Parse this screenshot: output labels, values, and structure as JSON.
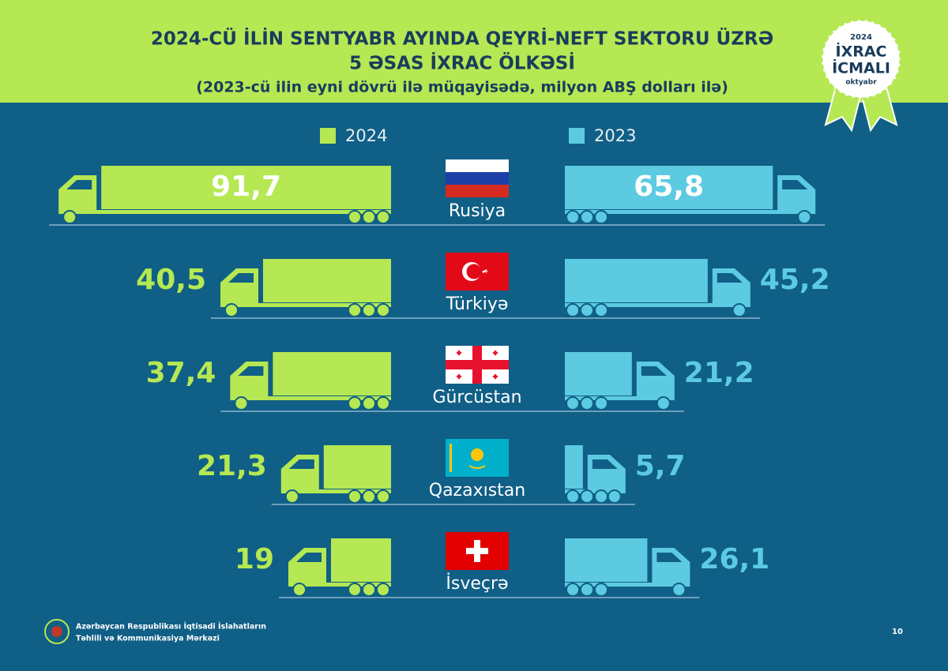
{
  "header": {
    "title_lines": [
      "2024-CÜ İLİN SENTYABR AYINDA QEYRİ-NEFT SEKTORU ÜZRƏ",
      "5 ƏSAS İXRAC ÖLKƏSİ"
    ],
    "subtitle": "(2023-cü ilin eyni dövrü ilə müqayisədə, milyon ABŞ dolları ilə)"
  },
  "badge": {
    "year": "2024",
    "title_lines": [
      "İXRAC",
      "İCMALI"
    ],
    "month": "oktyabr"
  },
  "chart_data": {
    "type": "butterfly",
    "categories": [
      "Rusiya",
      "Türkiyə",
      "Gürcüstan",
      "Qazaxıstan",
      "İsveçrə"
    ],
    "series": [
      {
        "name": "2024",
        "color": "#b5e853",
        "values": [
          91.7,
          40.5,
          37.4,
          21.3,
          19
        ],
        "value_labels": [
          "91,7",
          "40,5",
          "37,4",
          "21,3",
          "19"
        ]
      },
      {
        "name": "2023",
        "color": "#5ccbe2",
        "values": [
          65.8,
          45.2,
          21.2,
          5.7,
          26.1
        ],
        "value_labels": [
          "65,8",
          "45,2",
          "21,2",
          "5,7",
          "26,1"
        ]
      }
    ]
  },
  "footer": {
    "organization_lines": [
      "Azərbaycan Respublikası İqtisadi İslahatların",
      "Təhlili və Kommunikasiya Mərkəzi"
    ],
    "page_number": "10"
  }
}
